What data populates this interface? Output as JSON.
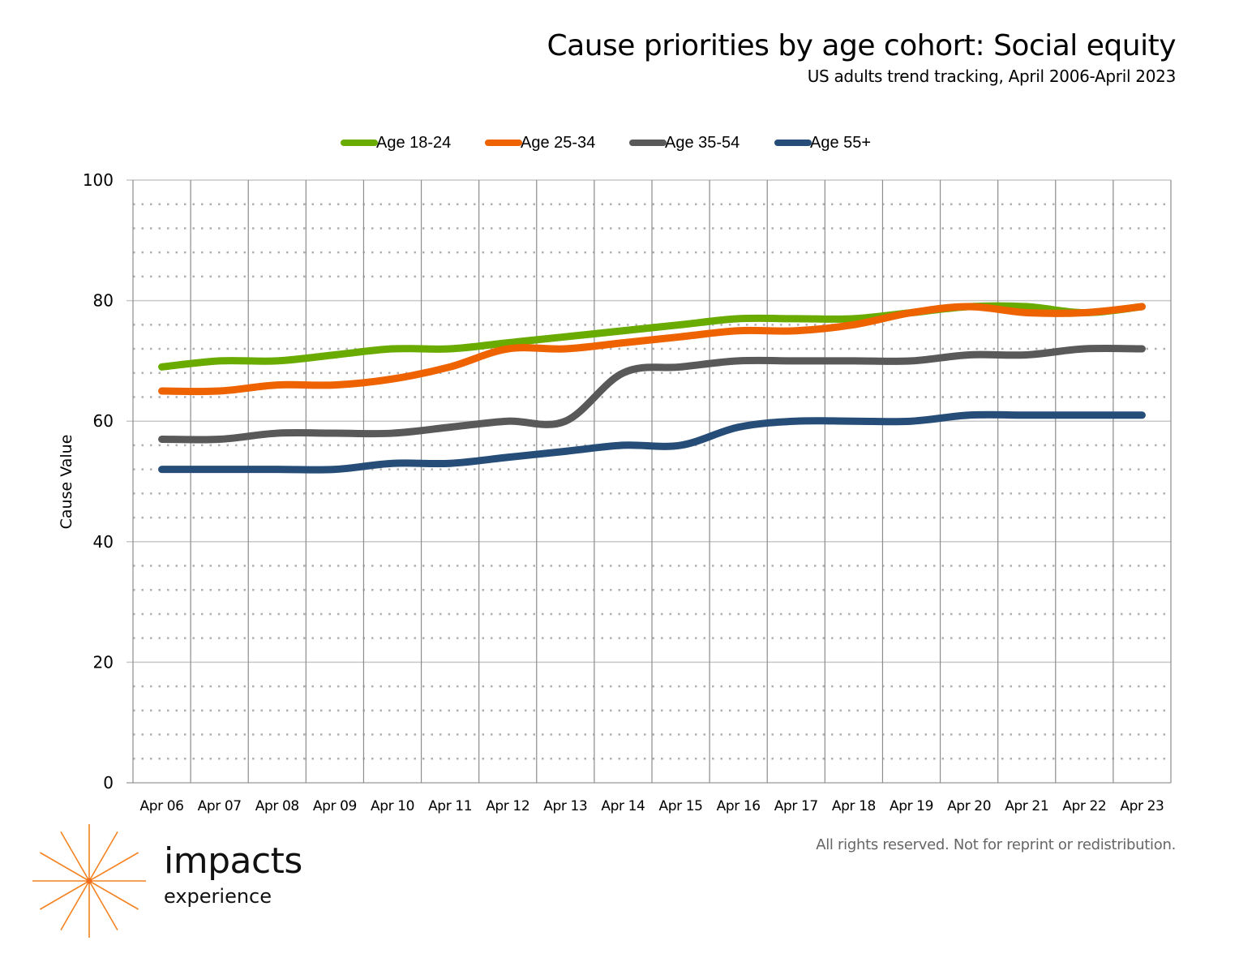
{
  "header": {
    "title": "Cause priorities by age cohort: Social equity",
    "subtitle": "US adults trend tracking, April 2006-April 2023"
  },
  "footer": {
    "note": "All rights reserved. Not for reprint or redistribution.",
    "logo_word": "impacts",
    "logo_sub": "experience",
    "logo_color": "#F58220"
  },
  "chart_data": {
    "type": "line",
    "title": "Cause priorities by age cohort: Social equity",
    "subtitle": "US adults trend tracking, April 2006-April 2023",
    "xlabel": "",
    "ylabel": "Cause Value",
    "ylim": [
      0,
      100
    ],
    "yticks": [
      0,
      20,
      40,
      60,
      80,
      100
    ],
    "grid": true,
    "legend_position": "top-center",
    "categories": [
      "Apr 06",
      "Apr 07",
      "Apr 08",
      "Apr 09",
      "Apr 10",
      "Apr 11",
      "Apr 12",
      "Apr 13",
      "Apr 14",
      "Apr 15",
      "Apr 16",
      "Apr 17",
      "Apr 18",
      "Apr 19",
      "Apr 20",
      "Apr 21",
      "Apr 22",
      "Apr 23"
    ],
    "series": [
      {
        "name": "Age 18-24",
        "color": "#6AAB00",
        "values": [
          69,
          70,
          70,
          71,
          72,
          72,
          73,
          74,
          75,
          76,
          77,
          77,
          77,
          78,
          79,
          79,
          78,
          79
        ]
      },
      {
        "name": "Age 25-34",
        "color": "#EE6300",
        "values": [
          65,
          65,
          66,
          66,
          67,
          69,
          72,
          72,
          73,
          74,
          75,
          75,
          76,
          78,
          79,
          78,
          78,
          79
        ]
      },
      {
        "name": "Age 35-54",
        "color": "#595959",
        "values": [
          57,
          57,
          58,
          58,
          58,
          59,
          60,
          60,
          68,
          69,
          70,
          70,
          70,
          70,
          71,
          71,
          72,
          72
        ]
      },
      {
        "name": "Age 55+",
        "color": "#264D78",
        "values": [
          52,
          52,
          52,
          52,
          53,
          53,
          54,
          55,
          56,
          56,
          59,
          60,
          60,
          60,
          61,
          61,
          61,
          61
        ]
      }
    ]
  }
}
